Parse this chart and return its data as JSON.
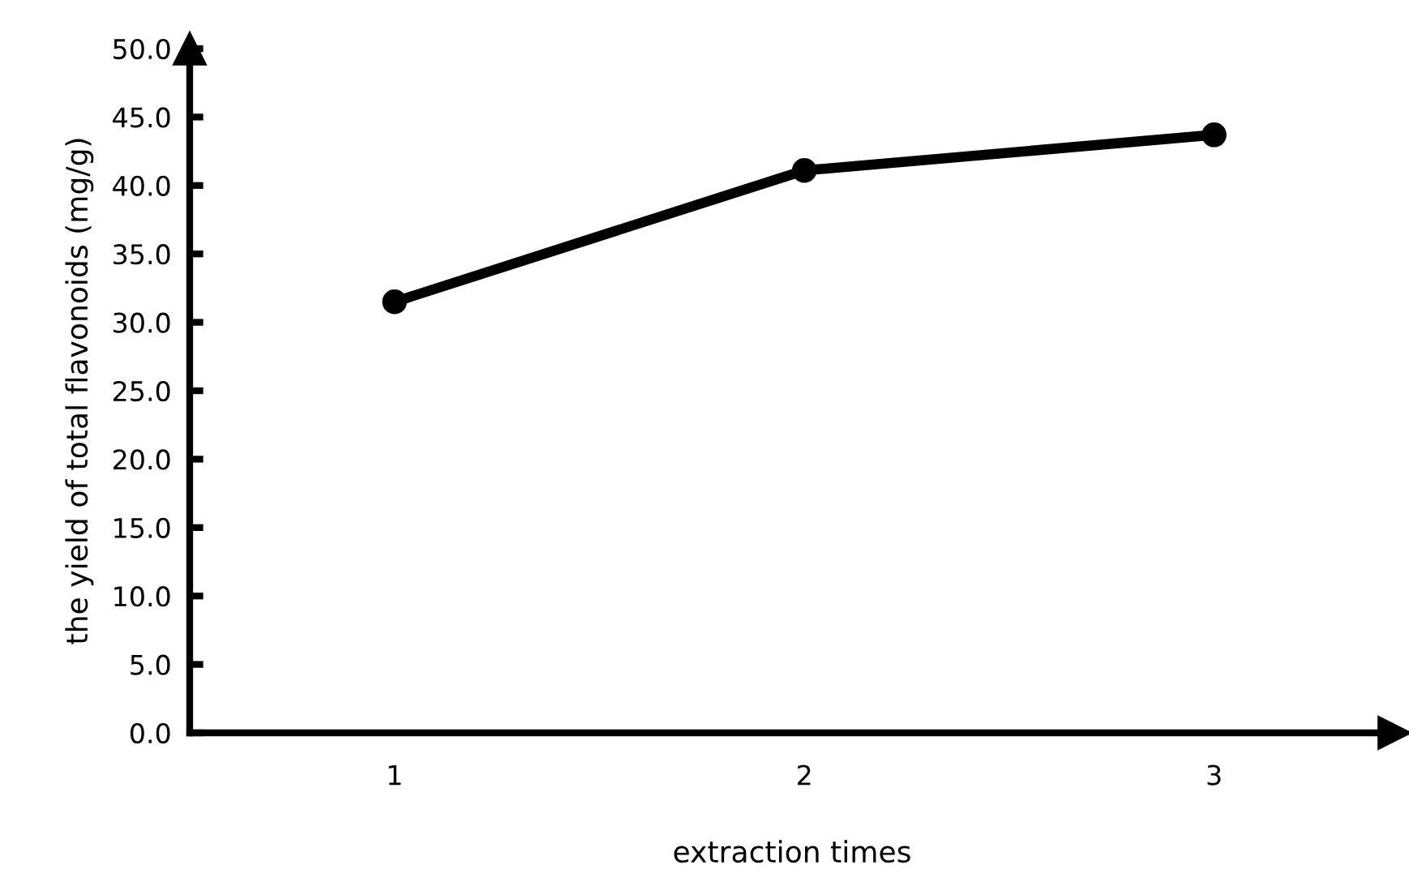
{
  "chart_data": {
    "type": "line",
    "xlabel": "extraction times",
    "ylabel": "the yield of total flavonoids (mg/g)",
    "categories": [
      "1",
      "2",
      "3"
    ],
    "series": [
      {
        "color": "#000000",
        "values": [
          31.5,
          41.1,
          43.7
        ]
      }
    ],
    "marker": "circle",
    "line_style": "solid",
    "grid": false,
    "legend": false,
    "ylim": [
      0,
      50
    ],
    "yticks": [
      {
        "value": 0,
        "label": "0.0"
      },
      {
        "value": 5,
        "label": "5.0"
      },
      {
        "value": 10,
        "label": "10.0"
      },
      {
        "value": 15,
        "label": "15.0"
      },
      {
        "value": 20,
        "label": "20.0"
      },
      {
        "value": 25,
        "label": "25.0"
      },
      {
        "value": 30,
        "label": "30.0"
      },
      {
        "value": 35,
        "label": "35.0"
      },
      {
        "value": 40,
        "label": "40.0"
      },
      {
        "value": 45,
        "label": "45.0"
      },
      {
        "value": 50,
        "label": "50.0"
      }
    ]
  }
}
